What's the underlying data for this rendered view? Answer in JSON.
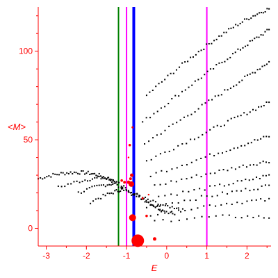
{
  "chart_data": {
    "type": "scatter",
    "title": "",
    "xlabel": "E",
    "ylabel": "<M>",
    "xlim": [
      -3.2,
      2.6
    ],
    "ylim": [
      -10,
      125
    ],
    "grid": false,
    "x_ticks": [
      -3,
      -2,
      -1,
      0,
      1,
      2
    ],
    "y_ticks": [
      0,
      50,
      100
    ],
    "colors": {
      "axes": "#ff0000",
      "dots": "#000000",
      "markers": "#ff0000",
      "line_green": "#008000",
      "line_magenta": "#ff00ff",
      "line_blue": "#0000ff"
    },
    "vertical_lines": [
      {
        "x": -1.2,
        "color": "#008000"
      },
      {
        "x": -1.0,
        "color": "#ff00ff"
      },
      {
        "x": -0.82,
        "color": "#0000ff",
        "thick": true
      },
      {
        "x": 1.0,
        "color": "#ff00ff"
      }
    ],
    "bands": [
      {
        "x0": -3.2,
        "y0": 28,
        "x1": -2.0,
        "y1": 36,
        "xm": -2.0,
        "ym": 36,
        "x2": -1.3,
        "y2": 26,
        "n": 45
      },
      {
        "x0": -2.7,
        "y0": 23,
        "x1": -2.1,
        "y1": 28,
        "xm": -1.7,
        "ym": 31,
        "x2": -1.3,
        "y2": 27,
        "n": 25
      },
      {
        "x0": -2.2,
        "y0": 20,
        "x1": -1.8,
        "y1": 24,
        "xm": -1.5,
        "ym": 26,
        "x2": -1.2,
        "y2": 25,
        "n": 20
      },
      {
        "x0": -1.9,
        "y0": 15,
        "x1": -1.5,
        "y1": 19,
        "xm": -1.3,
        "ym": 21,
        "x2": -1.1,
        "y2": 22,
        "n": 18
      },
      {
        "x0": -1.25,
        "y0": 26,
        "x1": -0.9,
        "y1": 22,
        "xm": -0.5,
        "ym": 15,
        "x2": -0.1,
        "y2": 10,
        "n": 25
      },
      {
        "x0": -1.2,
        "y0": 24,
        "x1": -0.8,
        "y1": 20,
        "xm": -0.4,
        "ym": 13,
        "x2": 0.2,
        "y2": 8,
        "n": 25
      },
      {
        "x0": -1.1,
        "y0": 23,
        "x1": -0.7,
        "y1": 18,
        "xm": -0.2,
        "ym": 12,
        "x2": 0.4,
        "y2": 10,
        "n": 25
      },
      {
        "x0": -0.5,
        "y0": 75,
        "x1": 0.3,
        "y1": 95,
        "xm": 1.4,
        "ym": 114,
        "x2": 2.55,
        "y2": 124,
        "n": 50
      },
      {
        "x0": -0.6,
        "y0": 60,
        "x1": 0.4,
        "y1": 79,
        "xm": 1.5,
        "ym": 97,
        "x2": 2.55,
        "y2": 112,
        "n": 45
      },
      {
        "x0": -0.55,
        "y0": 48,
        "x1": 0.5,
        "y1": 64,
        "xm": 1.5,
        "ym": 78,
        "x2": 2.55,
        "y2": 94,
        "n": 40
      },
      {
        "x0": -0.5,
        "y0": 38,
        "x1": 0.5,
        "y1": 50,
        "xm": 1.5,
        "ym": 60,
        "x2": 2.55,
        "y2": 71,
        "n": 35
      },
      {
        "x0": -0.4,
        "y0": 30,
        "x1": 0.6,
        "y1": 36,
        "xm": 1.6,
        "ym": 45,
        "x2": 2.55,
        "y2": 52,
        "n": 30
      },
      {
        "x0": -0.3,
        "y0": 24,
        "x1": 0.6,
        "y1": 26,
        "xm": 1.6,
        "ym": 34,
        "x2": 2.55,
        "y2": 38,
        "n": 28
      },
      {
        "x0": -0.2,
        "y0": 18,
        "x1": 0.6,
        "y1": 20,
        "xm": 1.7,
        "ym": 25,
        "x2": 2.55,
        "y2": 30,
        "n": 25
      },
      {
        "x0": -0.5,
        "y0": 12,
        "x1": 0.4,
        "y1": 14,
        "xm": 1.5,
        "ym": 20,
        "x2": 2.55,
        "y2": 24,
        "n": 25
      },
      {
        "x0": -0.4,
        "y0": 8,
        "x1": 0.4,
        "y1": 10,
        "xm": 1.5,
        "ym": 15,
        "x2": 2.55,
        "y2": 16,
        "n": 22
      },
      {
        "x0": -0.3,
        "y0": 4,
        "x1": 0.5,
        "y1": 6,
        "xm": 1.5,
        "ym": 8,
        "x2": 2.55,
        "y2": 6,
        "n": 18
      }
    ],
    "markers": [
      {
        "x": -0.72,
        "y": -7,
        "size": 9
      },
      {
        "x": -0.85,
        "y": 6,
        "size": 5
      },
      {
        "x": -0.3,
        "y": -6,
        "size": 2.5
      },
      {
        "x": -0.5,
        "y": 7,
        "size": 1.8
      },
      {
        "x": -0.88,
        "y": 25,
        "size": 4
      },
      {
        "x": -0.95,
        "y": 26,
        "size": 2.5
      },
      {
        "x": -1.05,
        "y": 26,
        "size": 2
      },
      {
        "x": -1.12,
        "y": 27,
        "size": 1.8
      },
      {
        "x": -0.87,
        "y": 30,
        "size": 2.5
      },
      {
        "x": -0.9,
        "y": 28,
        "size": 2
      },
      {
        "x": -0.92,
        "y": 47,
        "size": 1.8
      },
      {
        "x": -0.85,
        "y": 57,
        "size": 1.5
      },
      {
        "x": -0.6,
        "y": 17,
        "size": 1.5
      },
      {
        "x": -0.45,
        "y": 19,
        "size": 1.2
      },
      {
        "x": -0.95,
        "y": 40,
        "size": 1.2
      }
    ]
  }
}
